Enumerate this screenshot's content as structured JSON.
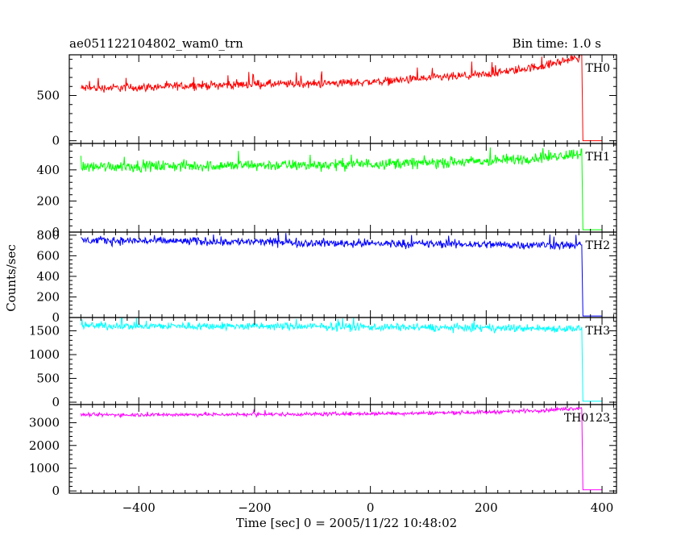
{
  "header": {
    "title": "ae051122104802_wam0_trn",
    "bin_time": "Bin time: 1.0 s"
  },
  "chart_data": {
    "type": "line",
    "title": "ae051122104802_wam0_trn",
    "subtitle": "Bin time: 1.0 s",
    "xlabel": "Time [sec] 0 = 2005/11/22 10:48:02",
    "ylabel": "Counts/sec",
    "xlim": [
      -520,
      425
    ],
    "xticks": [
      -400,
      -200,
      0,
      200,
      400
    ],
    "grid": false,
    "legend": "none",
    "panels": [
      {
        "name": "TH0",
        "color": "#ff0000",
        "ylim": [
          -30,
          950
        ],
        "yticks": [
          0,
          500
        ],
        "x": [
          -500,
          -400,
          -300,
          -200,
          -100,
          0,
          100,
          200,
          300,
          365,
          367,
          400
        ],
        "y": [
          580,
          590,
          610,
          625,
          630,
          650,
          690,
          730,
          830,
          930,
          0,
          0
        ],
        "noise_amplitude": 45
      },
      {
        "name": "TH1",
        "color": "#00ff00",
        "ylim": [
          0,
          570
        ],
        "yticks": [
          0,
          200,
          400
        ],
        "x": [
          -500,
          -400,
          -300,
          -200,
          -100,
          0,
          100,
          200,
          300,
          365,
          367,
          400
        ],
        "y": [
          420,
          425,
          425,
          430,
          430,
          440,
          445,
          455,
          480,
          510,
          15,
          15
        ],
        "noise_amplitude": 35
      },
      {
        "name": "TH2",
        "color": "#0000ff",
        "ylim": [
          0,
          830
        ],
        "yticks": [
          0,
          200,
          400,
          600,
          800
        ],
        "x": [
          -500,
          -400,
          -300,
          -200,
          -100,
          0,
          100,
          200,
          300,
          365,
          367,
          400
        ],
        "y": [
          750,
          745,
          740,
          735,
          725,
          720,
          715,
          710,
          705,
          700,
          15,
          15
        ],
        "noise_amplitude": 40
      },
      {
        "name": "TH3",
        "color": "#00ffff",
        "ylim": [
          -50,
          1780
        ],
        "yticks": [
          0,
          500,
          1000,
          1500
        ],
        "x": [
          -500,
          -400,
          -300,
          -200,
          -100,
          0,
          100,
          200,
          300,
          365,
          367,
          400
        ],
        "y": [
          1610,
          1600,
          1600,
          1595,
          1590,
          1580,
          1570,
          1560,
          1550,
          1550,
          20,
          20
        ],
        "noise_amplitude": 80
      },
      {
        "name": "TH0123",
        "color": "#ff00ff",
        "ylim": [
          -100,
          3800
        ],
        "yticks": [
          0,
          1000,
          2000,
          3000
        ],
        "x": [
          -500,
          -400,
          -300,
          -200,
          -100,
          0,
          100,
          200,
          300,
          365,
          367,
          400
        ],
        "y": [
          3350,
          3350,
          3360,
          3370,
          3380,
          3400,
          3430,
          3470,
          3550,
          3650,
          50,
          50
        ],
        "noise_amplitude": 80
      }
    ]
  }
}
